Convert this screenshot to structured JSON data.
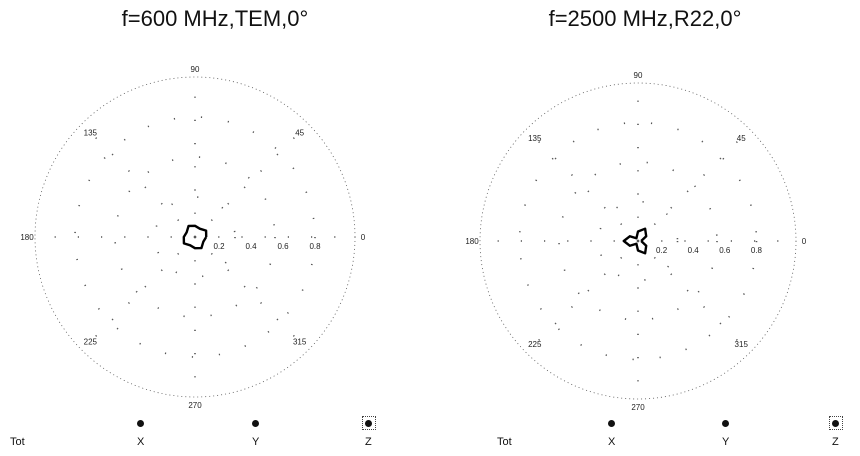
{
  "chart_data": [
    {
      "type": "polar",
      "title": "f=600 MHz,TEM,0°",
      "angle_labels": [
        "90",
        "45",
        "0",
        "315",
        "270",
        "225",
        "180",
        "135"
      ],
      "radial_ticks": [
        "0.2",
        "0.4",
        "0.6",
        "0.8"
      ],
      "rlim": [
        0,
        1
      ],
      "grid": true,
      "series": [
        {
          "values": [
            0.07,
            0.08,
            0.06,
            0.07,
            0.08,
            0.06,
            0.07,
            0.08,
            0.06,
            0.07,
            0.08,
            0.06
          ]
        }
      ],
      "legend": [
        "Tot",
        "X",
        "Y",
        "Z"
      ],
      "legend_position": "bottom"
    },
    {
      "type": "polar",
      "title": "f=2500 MHz,R22,0°",
      "angle_labels": [
        "90",
        "45",
        "0",
        "315",
        "270",
        "225",
        "180",
        "135"
      ],
      "radial_ticks": [
        "0.2",
        "0.4",
        "0.6",
        "0.8"
      ],
      "rlim": [
        0,
        1
      ],
      "grid": true,
      "series": [
        {
          "values": [
            0.02,
            0.06,
            0.09,
            0.06,
            0.02,
            0.06,
            0.09,
            0.06,
            0.02,
            0.06,
            0.09,
            0.06
          ]
        }
      ],
      "legend": [
        "Tot",
        "X",
        "Y",
        "Z"
      ],
      "legend_position": "bottom"
    }
  ]
}
